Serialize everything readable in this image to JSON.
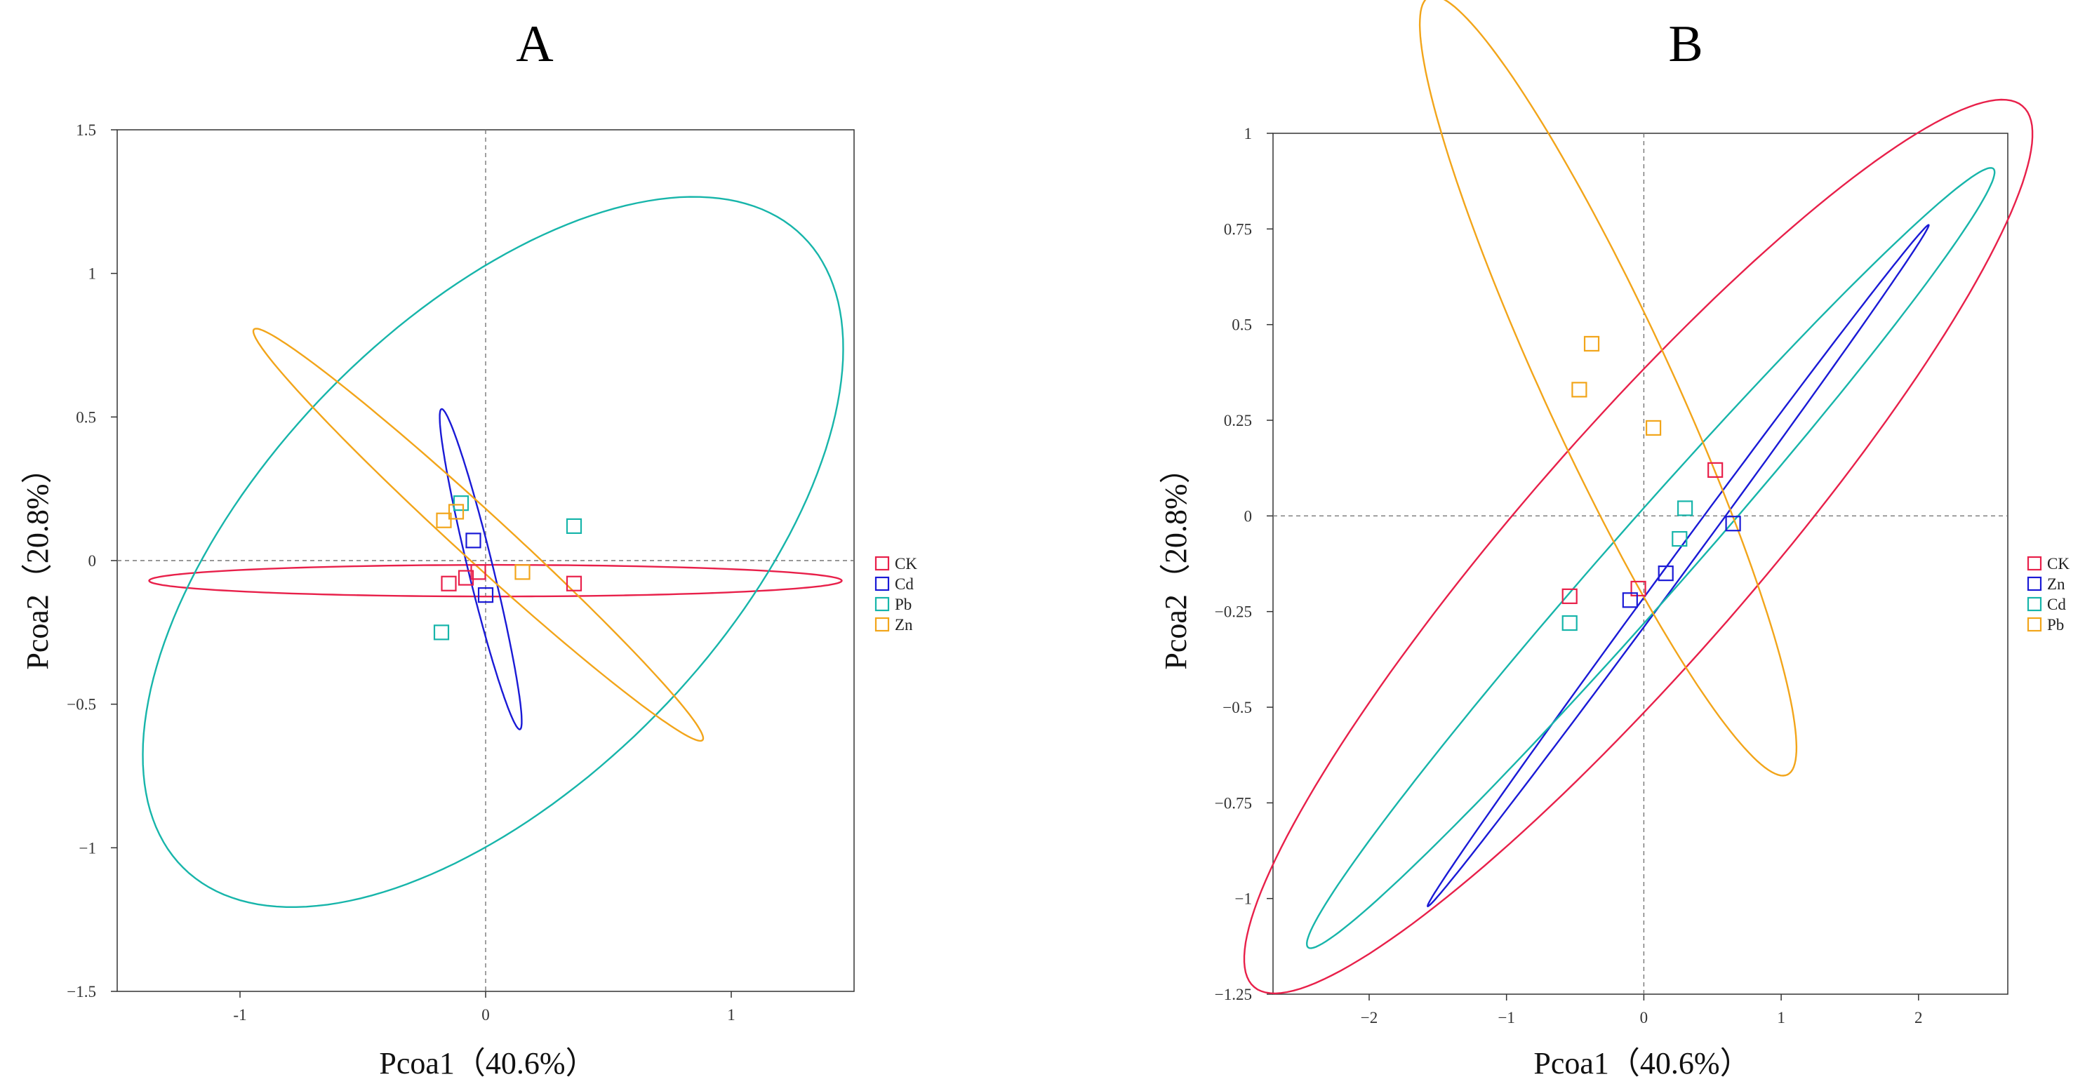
{
  "chart_data": [
    {
      "type": "scatter",
      "title": "A",
      "xlabel": "Pcoa1（40.6%）",
      "ylabel": "Pcoa2（20.8%）",
      "xlim": [
        -1.5,
        1.5
      ],
      "ylim": [
        -1.5,
        1.5
      ],
      "xticks": [
        -1,
        0,
        1
      ],
      "xtick_labels": [
        "-1",
        "0",
        "1"
      ],
      "yticks": [
        1.5,
        1,
        0.5,
        0,
        -0.5,
        -1,
        -1.5
      ],
      "ytick_labels": [
        "1.5",
        "1",
        "0.5",
        "0",
        "−0.5",
        "−1",
        "−1.5"
      ],
      "grid": false,
      "zero_lines": true,
      "legend_position": "right",
      "series": [
        {
          "name": "CK",
          "color": "#e8204a",
          "points": [
            [
              -0.15,
              -0.08
            ],
            [
              -0.08,
              -0.06
            ],
            [
              -0.03,
              -0.04
            ],
            [
              0.36,
              -0.08
            ]
          ],
          "ellipse": {
            "cx": 0.04,
            "cy": -0.07,
            "rx": 1.41,
            "ry": 0.055,
            "angle_deg": 0
          }
        },
        {
          "name": "Cd",
          "color": "#1a1ad6",
          "points": [
            [
              -0.05,
              0.07
            ],
            [
              0.0,
              -0.12
            ]
          ],
          "ellipse": {
            "cx": -0.02,
            "cy": -0.03,
            "rx": 0.58,
            "ry": 0.05,
            "angle_deg": -74
          }
        },
        {
          "name": "Pb",
          "color": "#17b5aa",
          "points": [
            [
              -0.1,
              0.2
            ],
            [
              0.36,
              0.12
            ],
            [
              -0.18,
              -0.25
            ]
          ],
          "ellipse": {
            "cx": 0.03,
            "cy": 0.03,
            "rx": 1.68,
            "ry": 0.86,
            "angle_deg": 38
          }
        },
        {
          "name": "Zn",
          "color": "#f2a51a",
          "points": [
            [
              -0.17,
              0.14
            ],
            [
              -0.12,
              0.17
            ],
            [
              0.15,
              -0.04
            ]
          ],
          "ellipse": {
            "cx": -0.03,
            "cy": 0.09,
            "rx": 1.16,
            "ry": 0.09,
            "angle_deg": -38
          }
        }
      ]
    },
    {
      "type": "scatter",
      "title": "B",
      "xlabel": "Pcoa1（40.6%）",
      "ylabel": "Pcoa2（20.8%）",
      "xlim": [
        -2.7,
        2.65
      ],
      "ylim": [
        -1.25,
        1.0
      ],
      "xticks": [
        -2,
        -1,
        0,
        1,
        2
      ],
      "xtick_labels": [
        "−2",
        "−1",
        "0",
        "1",
        "2"
      ],
      "yticks": [
        1,
        0.75,
        0.5,
        0.25,
        0,
        -0.25,
        -0.5,
        -0.75,
        -1,
        -1.25
      ],
      "ytick_labels": [
        "1",
        "0.75",
        "0.5",
        "0.25",
        "0",
        "−0.25",
        "−0.5",
        "−0.75",
        "−1",
        "−1.25"
      ],
      "grid": false,
      "zero_lines": true,
      "legend_position": "right",
      "series": [
        {
          "name": "CK",
          "color": "#e8204a",
          "points": [
            [
              -0.54,
              -0.21
            ],
            [
              -0.04,
              -0.19
            ],
            [
              0.52,
              0.12
            ]
          ],
          "ellipse": {
            "cx": -0.04,
            "cy": -0.08,
            "rx": 3.07,
            "ry": 0.42,
            "angle_deg": 21
          }
        },
        {
          "name": "Zn",
          "color": "#1a1ad6",
          "points": [
            [
              -0.1,
              -0.22
            ],
            [
              0.16,
              -0.15
            ],
            [
              0.65,
              -0.02
            ]
          ],
          "ellipse": {
            "cx": 0.25,
            "cy": -0.13,
            "rx": 2.03,
            "ry": 0.035,
            "angle_deg": 26
          }
        },
        {
          "name": "Cd",
          "color": "#17b5aa",
          "points": [
            [
              -0.54,
              -0.28
            ],
            [
              0.26,
              -0.06
            ],
            [
              0.3,
              0.02
            ]
          ],
          "ellipse": {
            "cx": 0.05,
            "cy": -0.11,
            "rx": 2.7,
            "ry": 0.14,
            "angle_deg": 22
          }
        },
        {
          "name": "Pb",
          "color": "#f2a51a",
          "points": [
            [
              -0.47,
              0.33
            ],
            [
              -0.38,
              0.45
            ],
            [
              0.07,
              0.23
            ]
          ],
          "ellipse": {
            "cx": -0.26,
            "cy": 0.34,
            "rx": 1.68,
            "ry": 0.31,
            "angle_deg": -36
          }
        }
      ]
    }
  ]
}
